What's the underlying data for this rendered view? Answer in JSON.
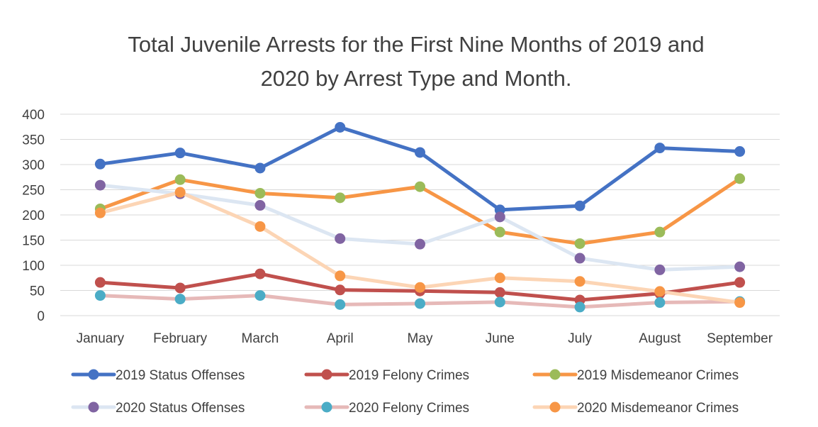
{
  "chart_data": {
    "type": "line",
    "title_line1": "Total Juvenile Arrests for the First Nine Months of 2019 and",
    "title_line2": "2020 by Arrest Type and Month.",
    "categories": [
      "January",
      "February",
      "March",
      "April",
      "May",
      "June",
      "July",
      "August",
      "September"
    ],
    "ylim": [
      0,
      400
    ],
    "yticks": [
      0,
      50,
      100,
      150,
      200,
      250,
      300,
      350,
      400
    ],
    "grid": true,
    "legend_position": "bottom",
    "series": [
      {
        "name": "2019 Status Offenses",
        "color": "#4472c4",
        "marker": "#4472c4",
        "values": [
          301,
          323,
          293,
          374,
          324,
          210,
          218,
          333,
          326
        ]
      },
      {
        "name": "2019 Felony Crimes",
        "color": "#c0504d",
        "marker": "#c0504d",
        "values": [
          66,
          55,
          83,
          51,
          49,
          46,
          31,
          44,
          66
        ]
      },
      {
        "name": "2019 Misdemeanor Crimes",
        "color": "#f79646",
        "marker": "#9bbb59",
        "values": [
          212,
          270,
          243,
          234,
          256,
          166,
          143,
          166,
          272
        ]
      },
      {
        "name": "2020 Status Offenses",
        "color": "#dce6f2",
        "marker": "#8064a2",
        "values": [
          259,
          242,
          219,
          153,
          142,
          196,
          114,
          91,
          97
        ]
      },
      {
        "name": "2020 Felony Crimes",
        "color": "#e6b9b8",
        "marker": "#4bacc6",
        "values": [
          40,
          33,
          40,
          22,
          24,
          27,
          17,
          26,
          28
        ]
      },
      {
        "name": "2020 Misdemeanor Crimes",
        "color": "#fcd5b5",
        "marker": "#f79646",
        "values": [
          204,
          245,
          177,
          79,
          56,
          75,
          68,
          48,
          26
        ]
      }
    ]
  }
}
